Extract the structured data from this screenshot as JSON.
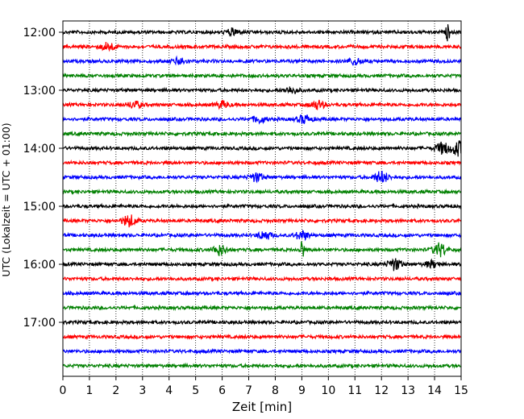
{
  "chart_data": {
    "type": "line",
    "title": "",
    "xlabel": "Zeit  [min]",
    "ylabel": "UTC (Lokalzeit = UTC + 01:00)",
    "xlim": [
      0,
      15
    ],
    "x_ticks": [
      "0",
      "1",
      "2",
      "3",
      "4",
      "5",
      "6",
      "7",
      "8",
      "9",
      "10",
      "11",
      "12",
      "13",
      "14",
      "15"
    ],
    "y_tick_labels": [
      "12:00",
      "13:00",
      "14:00",
      "15:00",
      "16:00",
      "17:00"
    ],
    "grid": "vertical dotted at each minute",
    "trace_start": "12:00",
    "trace_interval_minutes": 15,
    "trace_count": 24,
    "trace_colors": [
      "#000000",
      "#ff0000",
      "#0000ff",
      "#008000"
    ],
    "events": [
      {
        "trace": 0,
        "minute": 14.5,
        "amplitude": 11
      },
      {
        "trace": 0,
        "minute": 6.4,
        "amplitude": 4
      },
      {
        "trace": 1,
        "minute": 1.7,
        "amplitude": 5
      },
      {
        "trace": 2,
        "minute": 4.4,
        "amplitude": 4
      },
      {
        "trace": 2,
        "minute": 11.0,
        "amplitude": 4
      },
      {
        "trace": 4,
        "minute": 8.6,
        "amplitude": 4
      },
      {
        "trace": 5,
        "minute": 2.7,
        "amplitude": 4
      },
      {
        "trace": 5,
        "minute": 6.0,
        "amplitude": 4
      },
      {
        "trace": 5,
        "minute": 9.6,
        "amplitude": 5
      },
      {
        "trace": 6,
        "minute": 7.4,
        "amplitude": 4
      },
      {
        "trace": 6,
        "minute": 9.1,
        "amplitude": 5
      },
      {
        "trace": 8,
        "minute": 14.3,
        "amplitude": 7
      },
      {
        "trace": 8,
        "minute": 14.9,
        "amplitude": 9
      },
      {
        "trace": 10,
        "minute": 12.0,
        "amplitude": 7
      },
      {
        "trace": 10,
        "minute": 7.3,
        "amplitude": 5
      },
      {
        "trace": 13,
        "minute": 2.5,
        "amplitude": 7
      },
      {
        "trace": 14,
        "minute": 7.6,
        "amplitude": 5
      },
      {
        "trace": 14,
        "minute": 9.0,
        "amplitude": 5
      },
      {
        "trace": 15,
        "minute": 9.0,
        "amplitude": 14
      },
      {
        "trace": 15,
        "minute": 5.9,
        "amplitude": 6
      },
      {
        "trace": 15,
        "minute": 14.2,
        "amplitude": 8
      },
      {
        "trace": 16,
        "minute": 12.5,
        "amplitude": 7
      },
      {
        "trace": 16,
        "minute": 13.9,
        "amplitude": 4
      }
    ]
  }
}
